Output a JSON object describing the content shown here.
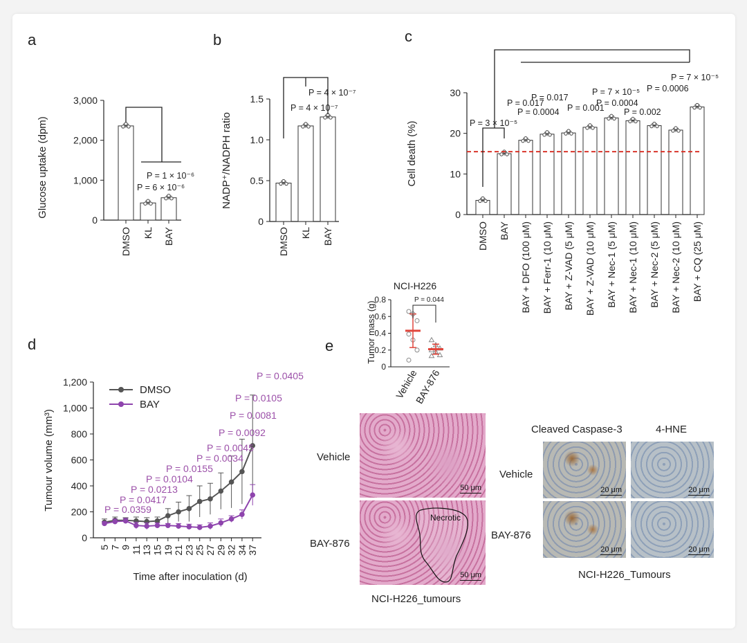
{
  "panel_labels": {
    "a": "a",
    "b": "b",
    "c": "c",
    "d": "d",
    "e": "e"
  },
  "chart_data": [
    {
      "id": "a",
      "type": "bar",
      "ylabel": "Glucose uptake (dpm)",
      "categories": [
        "DMSO",
        "KL",
        "BAY"
      ],
      "values": [
        2360,
        430,
        560
      ],
      "ylim": [
        0,
        3000
      ],
      "yticks": [
        "0",
        "1,000",
        "2,000",
        "3,000"
      ],
      "annotations": [
        "P = 1 × 10⁻⁶",
        "P = 6 × 10⁻⁶"
      ]
    },
    {
      "id": "b",
      "type": "bar",
      "ylabel": "NADP⁺/NADPH ratio",
      "categories": [
        "DMSO",
        "KL",
        "BAY"
      ],
      "values": [
        0.47,
        1.17,
        1.28
      ],
      "ylim": [
        0,
        1.5
      ],
      "yticks": [
        "0",
        "0.5",
        "1.0",
        "1.5"
      ],
      "annotations": [
        "P = 4 × 10⁻⁷",
        "P = 4 × 10⁻⁷"
      ]
    },
    {
      "id": "c",
      "type": "bar",
      "ylabel": "Cell death (%)",
      "categories": [
        "DMSO",
        "BAY",
        "BAY + DFO (100  μM)",
        "BAY + Ferr-1 (10 μM)",
        "BAY + Z-VAD (5 μM)",
        "BAY + Z-VAD (10 μM)",
        "BAY + Nec-1 (5 μM)",
        "BAY + Nec-1 (10 μM)",
        "BAY + Nec-2 (5 μM)",
        "BAY + Nec-2 (10 μM)",
        "BAY + CQ (25 μM)"
      ],
      "values": [
        3.5,
        15,
        18.3,
        19.8,
        20.1,
        21.5,
        23.8,
        23.1,
        21.9,
        20.8,
        26.5
      ],
      "ylim": [
        0,
        30
      ],
      "yticks": [
        "0",
        "10",
        "20",
        "30"
      ],
      "reference_line": 15.5,
      "annotations": [
        "P = 3 × 10⁻⁵",
        "P = 0.017",
        "P = 0.0004",
        "P = 0.017",
        "P = 0.001",
        "P = 7 × 10⁻⁵",
        "P = 0.0004",
        "P = 0.002",
        "P = 0.0006",
        "P = 7 × 10⁻⁵"
      ]
    },
    {
      "id": "d",
      "type": "line",
      "xlabel": "Time after inoculation (d)",
      "ylabel": "Tumour volume (mm³)",
      "x": [
        5,
        7,
        9,
        11,
        13,
        15,
        19,
        21,
        23,
        25,
        27,
        29,
        32,
        34,
        37
      ],
      "ylim": [
        0,
        1200
      ],
      "yticks": [
        "0",
        "200",
        "400",
        "600",
        "800",
        "1,000",
        "1,200"
      ],
      "series": [
        {
          "name": "DMSO",
          "color": "#555555",
          "values": [
            120,
            135,
            135,
            130,
            125,
            130,
            170,
            200,
            225,
            280,
            300,
            360,
            430,
            510,
            710
          ],
          "errors": [
            25,
            25,
            20,
            30,
            30,
            30,
            55,
            75,
            100,
            120,
            120,
            140,
            200,
            250,
            390
          ]
        },
        {
          "name": "BAY",
          "color": "#8e44ad",
          "values": [
            110,
            125,
            130,
            95,
            90,
            95,
            95,
            90,
            85,
            80,
            90,
            115,
            145,
            180,
            330
          ],
          "errors": [
            15,
            20,
            20,
            25,
            25,
            20,
            15,
            20,
            20,
            20,
            25,
            30,
            25,
            35,
            80
          ]
        }
      ],
      "pvalues": [
        "P = 0.0359",
        "P = 0.0417",
        "P = 0.0213",
        "P = 0.0104",
        "P = 0.0155",
        "P = 0.0034",
        "P = 0.0045",
        "P = 0.0092",
        "P = 0.0081",
        "P = 0.0105",
        "P = 0.0405"
      ]
    },
    {
      "id": "e",
      "type": "scatter",
      "title": "NCI-H226",
      "ylabel": "Tumor mass (g)",
      "categories": [
        "Vehicle",
        "BAY-876"
      ],
      "means": [
        0.43,
        0.21
      ],
      "sd": [
        0.2,
        0.06
      ],
      "points": [
        [
          0.66,
          0.63,
          0.55,
          0.39,
          0.32,
          0.2,
          0.08
        ],
        [
          0.32,
          0.26,
          0.22,
          0.2,
          0.18,
          0.14,
          0.13
        ]
      ],
      "ylim": [
        0,
        0.8
      ],
      "yticks": [
        "0",
        "0.2",
        "0.4",
        "0.6",
        "0.8"
      ],
      "annotation": "P = 0.044"
    }
  ],
  "images": {
    "he_rows": [
      "Vehicle",
      "BAY-876"
    ],
    "he_caption": "NCI-H226_tumours",
    "necrotic_label": "Necrotic",
    "he_scale": "50 μm",
    "ihc_cols": [
      "Cleaved Caspase-3",
      "4-HNE"
    ],
    "ihc_rows": [
      "Vehicle",
      "BAY-876"
    ],
    "ihc_caption": "NCI-H226_Tumours",
    "ihc_scale": "20 μm"
  },
  "colors": {
    "dmso": "#555555",
    "bay": "#8e44ad",
    "reference": "#d9362b",
    "mean_e": "#e0463c"
  }
}
